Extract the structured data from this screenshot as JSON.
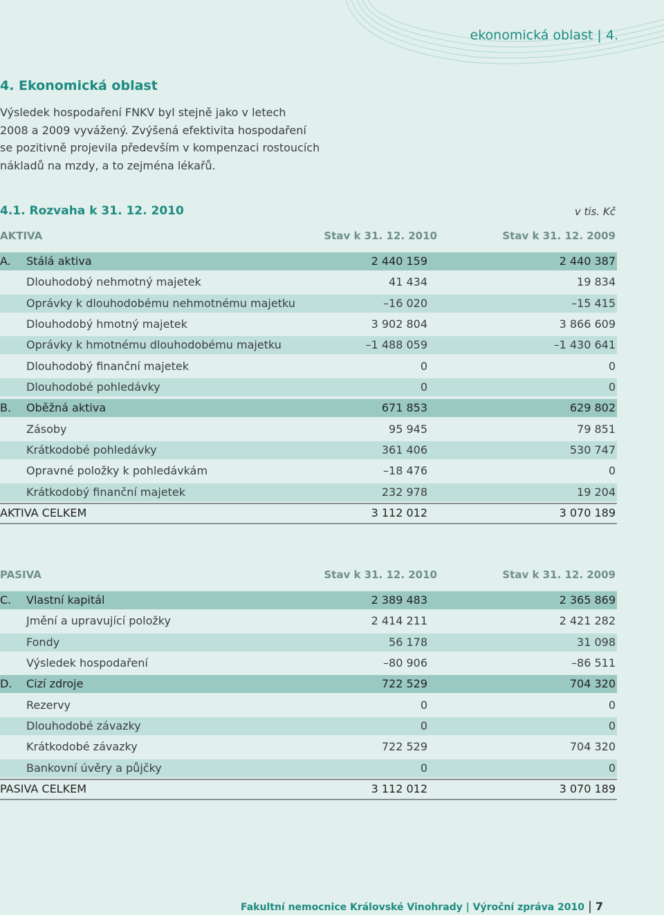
{
  "header": {
    "running_title": "ekonomická oblast | 4."
  },
  "section": {
    "title": "4. Ekonomická oblast",
    "paragraph": [
      "Výsledek hospodaření FNKV byl stejně jako v letech",
      "2008 a 2009 vyvážený. Zvýšená efektivita hospodaření",
      "se pozitivně projevila především v kompenzaci rostoucích",
      "nákladů na mzdy, a to zejména lékařů."
    ]
  },
  "subsection": {
    "title": "4.1. Rozvaha k 31. 12. 2010",
    "unit": "v tis. Kč"
  },
  "tables": [
    {
      "columns": [
        "AKTIVA",
        "Stav k 31. 12. 2010",
        "Stav k 31. 12. 2009"
      ],
      "rows": [
        {
          "code": "A.",
          "label": "Stálá aktiva",
          "values": [
            "2 440 159",
            "2 440 387"
          ]
        },
        {
          "label": "Dlouhodobý nehmotný majetek",
          "values": [
            "41 434",
            "19 834"
          ]
        },
        {
          "label": "Oprávky k dlouhodobému nehmotnému majetku",
          "values": [
            "–16 020",
            "–15 415"
          ]
        },
        {
          "label": "Dlouhodobý hmotný majetek",
          "values": [
            "3 902 804",
            "3 866 609"
          ]
        },
        {
          "label": "Oprávky k hmotnému dlouhodobému majetku",
          "values": [
            "–1 488 059",
            "–1 430 641"
          ]
        },
        {
          "label": "Dlouhodobý finanční majetek",
          "values": [
            "0",
            "0"
          ]
        },
        {
          "label": "Dlouhodobé pohledávky",
          "values": [
            "0",
            "0"
          ]
        },
        {
          "code": "B.",
          "label": "Oběžná aktiva",
          "values": [
            "671 853",
            "629 802"
          ]
        },
        {
          "label": "Zásoby",
          "values": [
            "95 945",
            "79 851"
          ]
        },
        {
          "label": "Krátkodobé pohledávky",
          "values": [
            "361 406",
            "530 747"
          ]
        },
        {
          "label": "Opravné položky k pohledávkám",
          "values": [
            "–18 476",
            "0"
          ]
        },
        {
          "label": "Krátkodobý finanční majetek",
          "values": [
            "232 978",
            "19 204"
          ]
        }
      ],
      "total": {
        "label": "AKTIVA CELKEM",
        "values": [
          "3 112 012",
          "3 070 189"
        ]
      }
    },
    {
      "columns": [
        "PASIVA",
        "Stav k 31. 12. 2010",
        "Stav k 31. 12. 2009"
      ],
      "rows": [
        {
          "code": "C.",
          "label": "Vlastní kapitál",
          "values": [
            "2 389 483",
            "2 365 869"
          ]
        },
        {
          "label": "Jmění a upravující položky",
          "values": [
            "2 414 211",
            "2 421 282"
          ]
        },
        {
          "label": "Fondy",
          "values": [
            "56 178",
            "31 098"
          ]
        },
        {
          "label": "Výsledek hospodaření",
          "values": [
            "–80 906",
            "–86 511"
          ]
        },
        {
          "code": "D.",
          "label": "Cizí zdroje",
          "values": [
            "722 529",
            "704 320"
          ]
        },
        {
          "label": "Rezervy",
          "values": [
            "0",
            "0"
          ]
        },
        {
          "label": "Dlouhodobé závazky",
          "values": [
            "0",
            "0"
          ]
        },
        {
          "label": "Krátkodobé závazky",
          "values": [
            "722 529",
            "704 320"
          ]
        },
        {
          "label": "Bankovní úvěry a půjčky",
          "values": [
            "0",
            "0"
          ]
        }
      ],
      "total": {
        "label": "PASIVA CELKEM",
        "values": [
          "3 112 012",
          "3 070 189"
        ]
      }
    }
  ],
  "footer": {
    "text": "Fakultní nemocnice Královské Vinohrady | Výroční zpráva 2010",
    "page": "7"
  }
}
